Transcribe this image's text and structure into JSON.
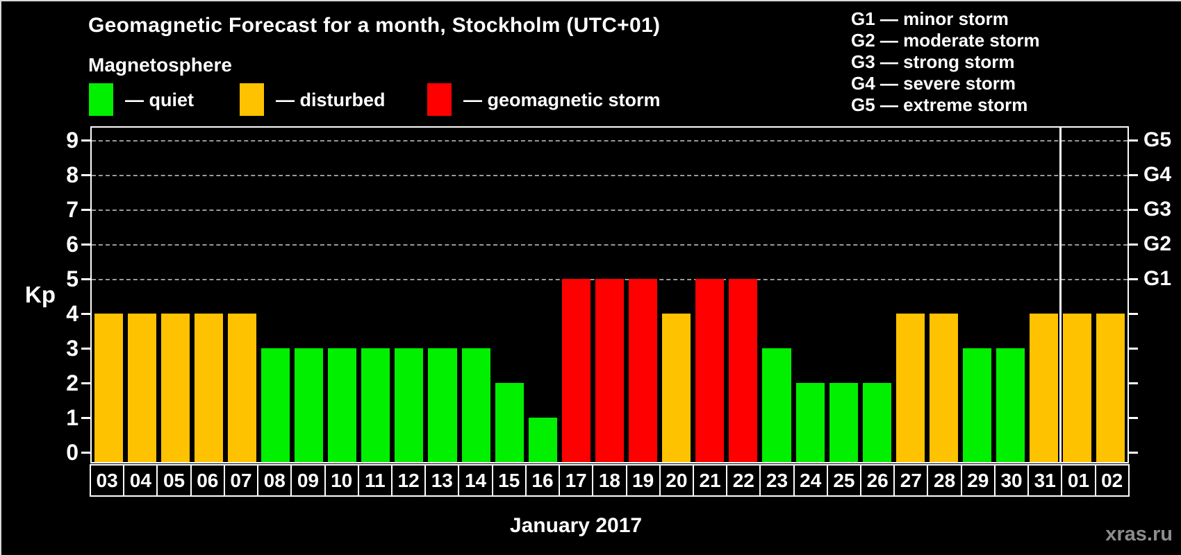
{
  "title": "Geomagnetic Forecast for a month, Stockholm (UTC+01)",
  "subtitle": "Magnetosphere",
  "magnetosphere_legend": [
    {
      "key": "quiet",
      "label": "— quiet",
      "color": "#00F000"
    },
    {
      "key": "disturbed",
      "label": "— disturbed",
      "color": "#FFC200"
    },
    {
      "key": "storm",
      "label": "— geomagnetic storm",
      "color": "#FF0000"
    }
  ],
  "g_scale_legend": [
    "G1 — minor storm",
    "G2 — moderate storm",
    "G3 — strong storm",
    "G4 — severe storm",
    "G5 — extreme storm"
  ],
  "chart_data": {
    "type": "bar",
    "title": "Geomagnetic Forecast for a month, Stockholm (UTC+01)",
    "ylabel": "Kp",
    "xlabel": "January 2017",
    "ylim": [
      0,
      9
    ],
    "yticks": [
      0,
      1,
      2,
      3,
      4,
      5,
      6,
      7,
      8,
      9
    ],
    "gridlines_kp": [
      5,
      6,
      7,
      8,
      9
    ],
    "grid": "dashed horizontal lines at storm levels G1–G5 (Kp 5–9)",
    "legend_position": "top",
    "right_axis_labels": [
      {
        "label": "G1",
        "kp": 5
      },
      {
        "label": "G2",
        "kp": 6
      },
      {
        "label": "G3",
        "kp": 7
      },
      {
        "label": "G4",
        "kp": 8
      },
      {
        "label": "G5",
        "kp": 9
      }
    ],
    "categories": [
      "03",
      "04",
      "05",
      "06",
      "07",
      "08",
      "09",
      "10",
      "11",
      "12",
      "13",
      "14",
      "15",
      "16",
      "17",
      "18",
      "19",
      "20",
      "21",
      "22",
      "23",
      "24",
      "25",
      "26",
      "27",
      "28",
      "29",
      "30",
      "31",
      "01",
      "02"
    ],
    "values": [
      4,
      4,
      4,
      4,
      4,
      3,
      3,
      3,
      3,
      3,
      3,
      3,
      2,
      1,
      5,
      5,
      5,
      4,
      5,
      5,
      3,
      2,
      2,
      2,
      4,
      4,
      3,
      3,
      4,
      4,
      4
    ],
    "status": [
      "disturbed",
      "disturbed",
      "disturbed",
      "disturbed",
      "disturbed",
      "quiet",
      "quiet",
      "quiet",
      "quiet",
      "quiet",
      "quiet",
      "quiet",
      "quiet",
      "quiet",
      "storm",
      "storm",
      "storm",
      "disturbed",
      "storm",
      "storm",
      "quiet",
      "quiet",
      "quiet",
      "quiet",
      "disturbed",
      "disturbed",
      "quiet",
      "quiet",
      "disturbed",
      "disturbed",
      "disturbed"
    ],
    "month_separator_after_index": 28
  },
  "footer": {
    "caption": "January 2017",
    "watermark": "xras.ru"
  },
  "colors": {
    "background": "#000000",
    "axis": "#FFFFFF",
    "gridline": "#9A9A9A",
    "quiet": "#00F000",
    "disturbed": "#FFC200",
    "storm": "#FF0000",
    "watermark": "#8D8D8D"
  }
}
